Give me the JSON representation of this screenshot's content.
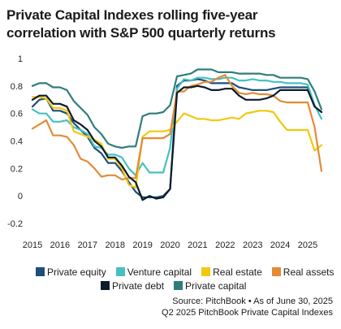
{
  "title_line1": "Private Capital Indexes rolling five-year",
  "title_line2": "correlation with S&P 500 quarterly returns",
  "source_line1": "Source: PitchBook • As of June 30, 2025",
  "source_line2": "Q2 2025 PitchBook Private Capital Indexes",
  "chart_data": {
    "type": "line",
    "title": "Private Capital Indexes rolling five-year correlation with S&P 500 quarterly returns",
    "xlabel": "",
    "ylabel": "",
    "x_ticks": [
      "2015",
      "2016",
      "2017",
      "2018",
      "2019",
      "2020",
      "2021",
      "2022",
      "2023",
      "2024",
      "2025"
    ],
    "y_ticks": [
      "-0.2",
      "0",
      "0.2",
      "0.4",
      "0.6",
      "0.8",
      "1"
    ],
    "ylim": [
      -0.2,
      1.0
    ],
    "xlim": [
      2015.0,
      2025.5
    ],
    "grid": false,
    "legend_position": "bottom",
    "series": [
      {
        "name": "Private equity",
        "color": "#1f4e79",
        "points": [
          [
            2015.0,
            0.65
          ],
          [
            2015.25,
            0.7
          ],
          [
            2015.5,
            0.71
          ],
          [
            2015.75,
            0.62
          ],
          [
            2016.0,
            0.62
          ],
          [
            2016.25,
            0.6
          ],
          [
            2016.5,
            0.53
          ],
          [
            2016.75,
            0.48
          ],
          [
            2017.0,
            0.43
          ],
          [
            2017.25,
            0.35
          ],
          [
            2017.5,
            0.31
          ],
          [
            2017.75,
            0.24
          ],
          [
            2018.0,
            0.24
          ],
          [
            2018.25,
            0.18
          ],
          [
            2018.5,
            0.1
          ],
          [
            2018.75,
            0.03
          ],
          [
            2019.0,
            -0.01
          ],
          [
            2019.25,
            -0.01
          ],
          [
            2019.5,
            -0.01
          ],
          [
            2019.75,
            0.0
          ],
          [
            2020.0,
            0.05
          ],
          [
            2020.25,
            0.8
          ],
          [
            2020.5,
            0.84
          ],
          [
            2020.75,
            0.84
          ],
          [
            2021.0,
            0.85
          ],
          [
            2021.25,
            0.84
          ],
          [
            2021.5,
            0.82
          ],
          [
            2021.75,
            0.82
          ],
          [
            2022.0,
            0.82
          ],
          [
            2022.25,
            0.82
          ],
          [
            2022.5,
            0.79
          ],
          [
            2022.75,
            0.78
          ],
          [
            2023.0,
            0.77
          ],
          [
            2023.25,
            0.77
          ],
          [
            2023.5,
            0.77
          ],
          [
            2023.75,
            0.78
          ],
          [
            2024.0,
            0.79
          ],
          [
            2024.25,
            0.79
          ],
          [
            2024.5,
            0.79
          ],
          [
            2024.75,
            0.79
          ],
          [
            2025.0,
            0.79
          ],
          [
            2025.25,
            0.65
          ],
          [
            2025.5,
            0.61
          ]
        ]
      },
      {
        "name": "Venture capital",
        "color": "#45c1c0",
        "points": [
          [
            2015.0,
            0.63
          ],
          [
            2015.25,
            0.6
          ],
          [
            2015.5,
            0.6
          ],
          [
            2015.75,
            0.54
          ],
          [
            2016.0,
            0.54
          ],
          [
            2016.25,
            0.55
          ],
          [
            2016.5,
            0.5
          ],
          [
            2016.75,
            0.48
          ],
          [
            2017.0,
            0.45
          ],
          [
            2017.25,
            0.36
          ],
          [
            2017.5,
            0.35
          ],
          [
            2017.75,
            0.3
          ],
          [
            2018.0,
            0.3
          ],
          [
            2018.25,
            0.28
          ],
          [
            2018.5,
            0.2
          ],
          [
            2018.75,
            0.15
          ],
          [
            2019.0,
            0.24
          ],
          [
            2019.25,
            0.17
          ],
          [
            2019.5,
            0.17
          ],
          [
            2019.75,
            0.17
          ],
          [
            2020.0,
            0.35
          ],
          [
            2020.25,
            0.78
          ],
          [
            2020.5,
            0.85
          ],
          [
            2020.75,
            0.84
          ],
          [
            2021.0,
            0.86
          ],
          [
            2021.25,
            0.86
          ],
          [
            2021.5,
            0.85
          ],
          [
            2021.75,
            0.85
          ],
          [
            2022.0,
            0.86
          ],
          [
            2022.25,
            0.86
          ],
          [
            2022.5,
            0.84
          ],
          [
            2022.75,
            0.84
          ],
          [
            2023.0,
            0.85
          ],
          [
            2023.25,
            0.84
          ],
          [
            2023.5,
            0.84
          ],
          [
            2023.75,
            0.83
          ],
          [
            2024.0,
            0.83
          ],
          [
            2024.25,
            0.82
          ],
          [
            2024.5,
            0.82
          ],
          [
            2024.75,
            0.82
          ],
          [
            2025.0,
            0.81
          ],
          [
            2025.25,
            0.66
          ],
          [
            2025.5,
            0.56
          ]
        ]
      },
      {
        "name": "Real estate",
        "color": "#f2c80f",
        "points": [
          [
            2015.0,
            0.72
          ],
          [
            2015.25,
            0.72
          ],
          [
            2015.5,
            0.71
          ],
          [
            2015.75,
            0.64
          ],
          [
            2016.0,
            0.64
          ],
          [
            2016.25,
            0.62
          ],
          [
            2016.5,
            0.47
          ],
          [
            2016.75,
            0.45
          ],
          [
            2017.0,
            0.43
          ],
          [
            2017.25,
            0.41
          ],
          [
            2017.5,
            0.38
          ],
          [
            2017.75,
            0.27
          ],
          [
            2018.0,
            0.27
          ],
          [
            2018.25,
            0.2
          ],
          [
            2018.5,
            0.08
          ],
          [
            2018.75,
            0.06
          ],
          [
            2019.0,
            0.43
          ],
          [
            2019.25,
            0.47
          ],
          [
            2019.5,
            0.47
          ],
          [
            2019.75,
            0.47
          ],
          [
            2020.0,
            0.48
          ],
          [
            2020.25,
            0.54
          ],
          [
            2020.5,
            0.6
          ],
          [
            2020.75,
            0.58
          ],
          [
            2021.0,
            0.56
          ],
          [
            2021.25,
            0.56
          ],
          [
            2021.5,
            0.55
          ],
          [
            2021.75,
            0.55
          ],
          [
            2022.0,
            0.56
          ],
          [
            2022.25,
            0.57
          ],
          [
            2022.5,
            0.56
          ],
          [
            2022.75,
            0.6
          ],
          [
            2023.0,
            0.61
          ],
          [
            2023.25,
            0.62
          ],
          [
            2023.5,
            0.62
          ],
          [
            2023.75,
            0.61
          ],
          [
            2024.0,
            0.54
          ],
          [
            2024.25,
            0.48
          ],
          [
            2024.5,
            0.48
          ],
          [
            2024.75,
            0.48
          ],
          [
            2025.0,
            0.48
          ],
          [
            2025.25,
            0.33
          ],
          [
            2025.5,
            0.37
          ]
        ]
      },
      {
        "name": "Real assets",
        "color": "#e38b36",
        "points": [
          [
            2015.0,
            0.49
          ],
          [
            2015.25,
            0.52
          ],
          [
            2015.5,
            0.55
          ],
          [
            2015.75,
            0.44
          ],
          [
            2016.0,
            0.44
          ],
          [
            2016.25,
            0.43
          ],
          [
            2016.5,
            0.37
          ],
          [
            2016.75,
            0.27
          ],
          [
            2017.0,
            0.25
          ],
          [
            2017.25,
            0.2
          ],
          [
            2017.5,
            0.14
          ],
          [
            2017.75,
            0.15
          ],
          [
            2018.0,
            0.15
          ],
          [
            2018.25,
            0.12
          ],
          [
            2018.5,
            0.13
          ],
          [
            2018.75,
            0.13
          ],
          [
            2019.0,
            0.42
          ],
          [
            2019.25,
            0.42
          ],
          [
            2019.5,
            0.42
          ],
          [
            2019.75,
            0.42
          ],
          [
            2020.0,
            0.45
          ],
          [
            2020.25,
            0.76
          ],
          [
            2020.5,
            0.76
          ],
          [
            2020.75,
            0.8
          ],
          [
            2021.0,
            0.81
          ],
          [
            2021.25,
            0.83
          ],
          [
            2021.5,
            0.83
          ],
          [
            2021.75,
            0.86
          ],
          [
            2022.0,
            0.88
          ],
          [
            2022.25,
            0.8
          ],
          [
            2022.5,
            0.75
          ],
          [
            2022.75,
            0.74
          ],
          [
            2023.0,
            0.75
          ],
          [
            2023.25,
            0.74
          ],
          [
            2023.5,
            0.74
          ],
          [
            2023.75,
            0.73
          ],
          [
            2024.0,
            0.69
          ],
          [
            2024.25,
            0.68
          ],
          [
            2024.5,
            0.68
          ],
          [
            2024.75,
            0.68
          ],
          [
            2025.0,
            0.68
          ],
          [
            2025.25,
            0.5
          ],
          [
            2025.5,
            0.18
          ]
        ]
      },
      {
        "name": "Private debt",
        "color": "#0d1b2a",
        "points": [
          [
            2015.0,
            0.7
          ],
          [
            2015.25,
            0.73
          ],
          [
            2015.5,
            0.73
          ],
          [
            2015.75,
            0.67
          ],
          [
            2016.0,
            0.67
          ],
          [
            2016.25,
            0.65
          ],
          [
            2016.5,
            0.55
          ],
          [
            2016.75,
            0.52
          ],
          [
            2017.0,
            0.48
          ],
          [
            2017.25,
            0.4
          ],
          [
            2017.5,
            0.36
          ],
          [
            2017.75,
            0.28
          ],
          [
            2018.0,
            0.28
          ],
          [
            2018.25,
            0.22
          ],
          [
            2018.5,
            0.14
          ],
          [
            2018.75,
            0.1
          ],
          [
            2019.0,
            -0.03
          ],
          [
            2019.25,
            0.0
          ],
          [
            2019.5,
            -0.02
          ],
          [
            2019.75,
            -0.01
          ],
          [
            2020.0,
            0.05
          ],
          [
            2020.25,
            0.75
          ],
          [
            2020.5,
            0.79
          ],
          [
            2020.75,
            0.79
          ],
          [
            2021.0,
            0.8
          ],
          [
            2021.25,
            0.79
          ],
          [
            2021.5,
            0.77
          ],
          [
            2021.75,
            0.77
          ],
          [
            2022.0,
            0.78
          ],
          [
            2022.25,
            0.78
          ],
          [
            2022.5,
            0.73
          ],
          [
            2022.75,
            0.7
          ],
          [
            2023.0,
            0.7
          ],
          [
            2023.25,
            0.7
          ],
          [
            2023.5,
            0.71
          ],
          [
            2023.75,
            0.73
          ],
          [
            2024.0,
            0.77
          ],
          [
            2024.25,
            0.77
          ],
          [
            2024.5,
            0.77
          ],
          [
            2024.75,
            0.77
          ],
          [
            2025.0,
            0.77
          ],
          [
            2025.25,
            0.65
          ],
          [
            2025.5,
            0.61
          ]
        ]
      },
      {
        "name": "Private capital",
        "color": "#2e7d7a",
        "points": [
          [
            2015.0,
            0.8
          ],
          [
            2015.25,
            0.82
          ],
          [
            2015.5,
            0.82
          ],
          [
            2015.75,
            0.79
          ],
          [
            2016.0,
            0.79
          ],
          [
            2016.25,
            0.77
          ],
          [
            2016.5,
            0.69
          ],
          [
            2016.75,
            0.64
          ],
          [
            2017.0,
            0.59
          ],
          [
            2017.25,
            0.5
          ],
          [
            2017.5,
            0.45
          ],
          [
            2017.75,
            0.38
          ],
          [
            2018.0,
            0.36
          ],
          [
            2018.25,
            0.35
          ],
          [
            2018.5,
            0.36
          ],
          [
            2018.75,
            0.36
          ],
          [
            2019.0,
            0.58
          ],
          [
            2019.25,
            0.6
          ],
          [
            2019.5,
            0.6
          ],
          [
            2019.75,
            0.61
          ],
          [
            2020.0,
            0.66
          ],
          [
            2020.25,
            0.87
          ],
          [
            2020.5,
            0.88
          ],
          [
            2020.75,
            0.89
          ],
          [
            2021.0,
            0.92
          ],
          [
            2021.25,
            0.92
          ],
          [
            2021.5,
            0.92
          ],
          [
            2021.75,
            0.9
          ],
          [
            2022.0,
            0.9
          ],
          [
            2022.25,
            0.9
          ],
          [
            2022.5,
            0.89
          ],
          [
            2022.75,
            0.89
          ],
          [
            2023.0,
            0.89
          ],
          [
            2023.25,
            0.89
          ],
          [
            2023.5,
            0.88
          ],
          [
            2023.75,
            0.88
          ],
          [
            2024.0,
            0.86
          ],
          [
            2024.25,
            0.86
          ],
          [
            2024.5,
            0.86
          ],
          [
            2024.75,
            0.86
          ],
          [
            2025.0,
            0.85
          ],
          [
            2025.25,
            0.76
          ],
          [
            2025.5,
            0.63
          ]
        ]
      }
    ]
  }
}
